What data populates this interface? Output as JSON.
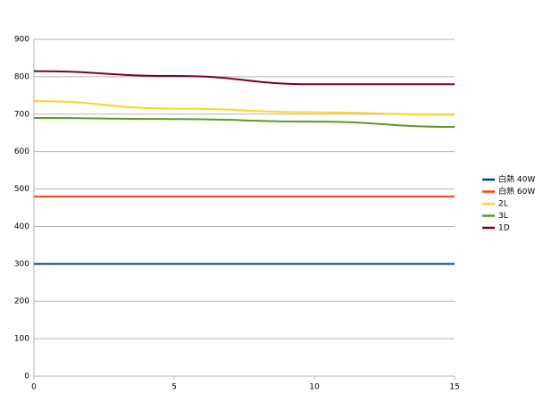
{
  "chart_data": {
    "type": "line",
    "x": [
      0,
      5,
      10,
      15
    ],
    "series": [
      {
        "name": "白熱 40W",
        "color": "#004586",
        "values": [
          300,
          300,
          300,
          300
        ]
      },
      {
        "name": "白熱 60W",
        "color": "#ff420e",
        "values": [
          480,
          480,
          480,
          480
        ]
      },
      {
        "name": "2L",
        "color": "#ffd320",
        "values": [
          735,
          715,
          705,
          698
        ]
      },
      {
        "name": "3L",
        "color": "#579d1c",
        "values": [
          690,
          687,
          680,
          666
        ]
      },
      {
        "name": "1D",
        "color": "#7e0021",
        "values": [
          815,
          802,
          780,
          780
        ]
      }
    ],
    "xlim": [
      0,
      15
    ],
    "xticks": [
      0,
      5,
      10,
      15
    ],
    "ylim": [
      0,
      900
    ],
    "yticks": [
      0,
      100,
      200,
      300,
      400,
      500,
      600,
      700,
      800,
      900
    ],
    "grid": true,
    "legend": "right"
  }
}
